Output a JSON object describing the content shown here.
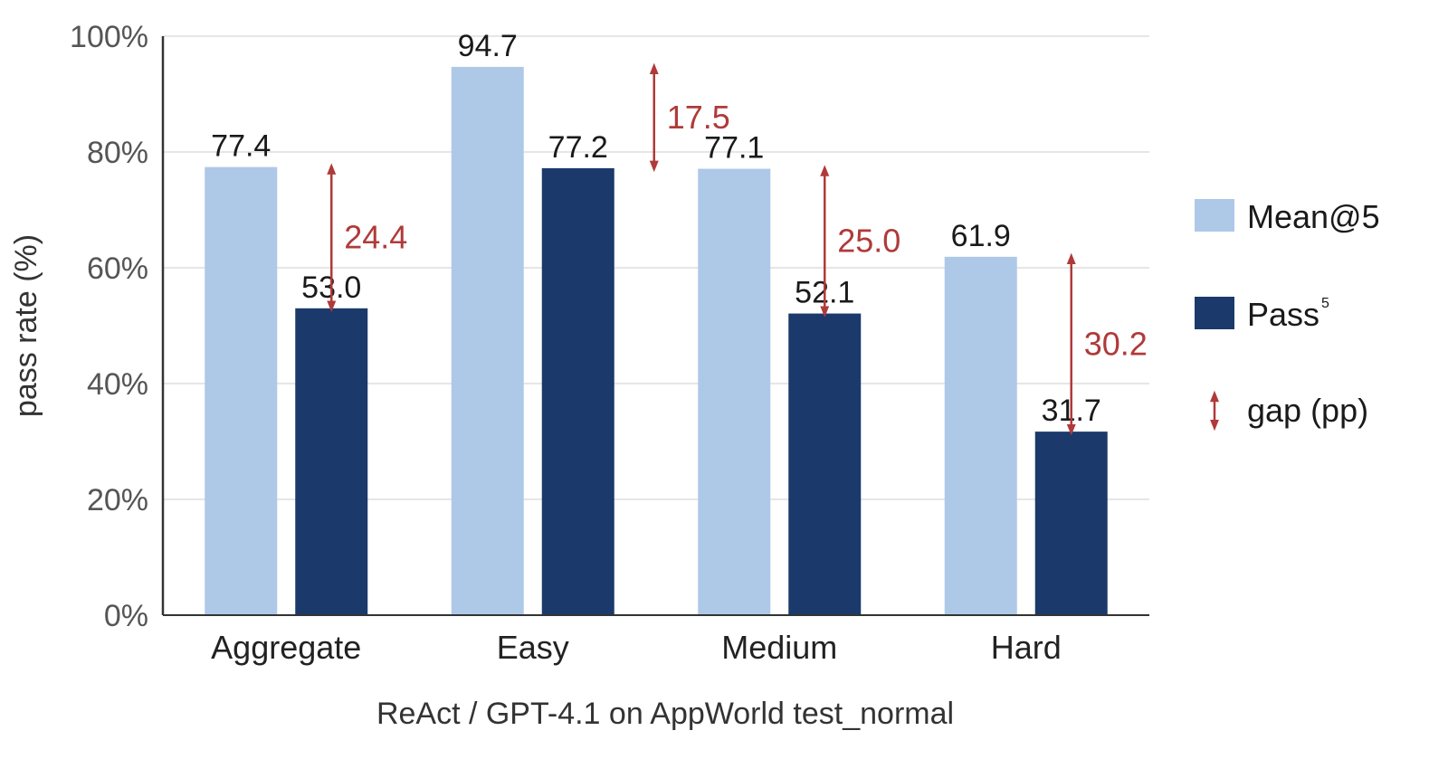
{
  "chart_data": {
    "type": "bar",
    "categories": [
      "Aggregate",
      "Easy",
      "Medium",
      "Hard"
    ],
    "series": [
      {
        "name": "Mean@5",
        "values": [
          77.4,
          94.7,
          77.1,
          61.9
        ],
        "color": "#aec8e8"
      },
      {
        "name": "Pass",
        "superscript": "5",
        "values": [
          53.0,
          77.2,
          52.1,
          31.7
        ],
        "color": "#1b3a6b"
      }
    ],
    "value_labels": [
      [
        "77.4",
        "94.7",
        "77.1",
        "61.9"
      ],
      [
        "53.0",
        "77.2",
        "52.1",
        "31.7"
      ]
    ],
    "gaps": {
      "name": "gap (pp)",
      "values": [
        24.4,
        17.5,
        25.0,
        30.2
      ],
      "labels": [
        "24.4",
        "17.5",
        "25.0",
        "30.2"
      ],
      "color": "#b03a3a"
    },
    "xlabel": "ReAct / GPT-4.1 on AppWorld test_normal",
    "ylabel": "pass rate (%)",
    "ylim": [
      0,
      100
    ],
    "yticks": [
      0,
      20,
      40,
      60,
      80,
      100
    ],
    "ytick_labels": [
      "0%",
      "20%",
      "40%",
      "60%",
      "80%",
      "100%"
    ],
    "grid": true,
    "legend_position": "right"
  }
}
